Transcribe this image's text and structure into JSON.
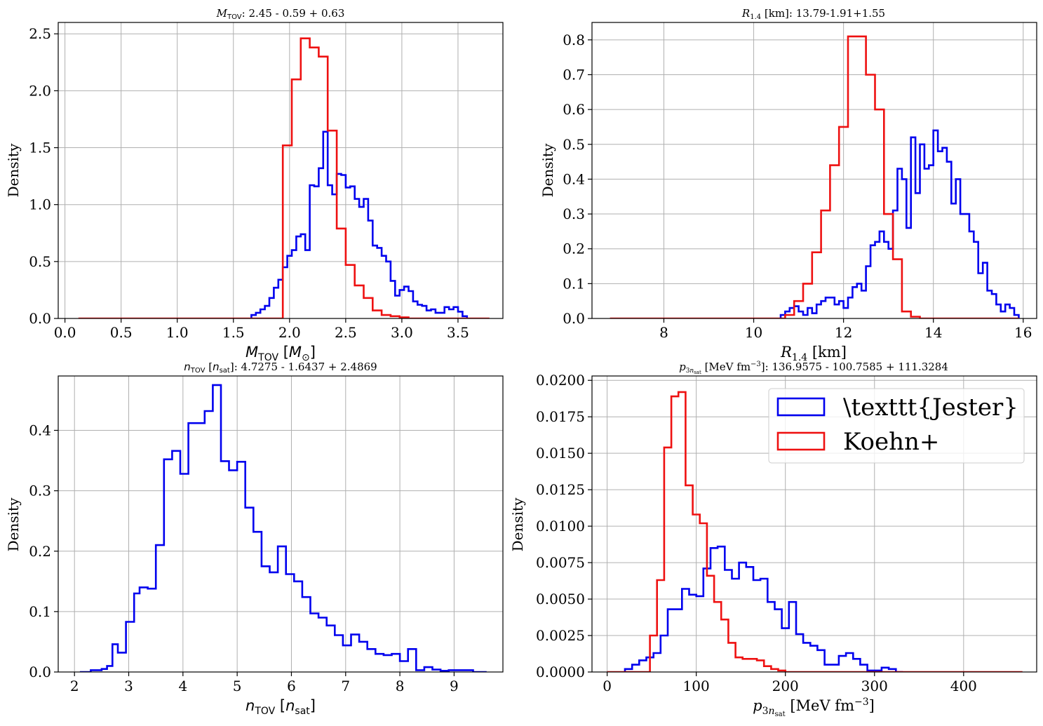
{
  "colors": {
    "jester": "#0000ee",
    "koehn": "#ee1111",
    "grid": "#b0b0b0"
  },
  "chart_data": [
    {
      "id": "mtov",
      "type": "step-histogram",
      "title": "M_TOV: 2.45 - 0.59 + 0.63",
      "xlabel": "M_TOV [M_⊙]",
      "ylabel": "Density",
      "xlim": [
        -0.06,
        3.9
      ],
      "ylim": [
        0,
        2.6
      ],
      "xticks": [
        0.0,
        0.5,
        1.0,
        1.5,
        2.0,
        2.5,
        3.0,
        3.5
      ],
      "xtick_labels": [
        "0.0",
        "0.5",
        "1.0",
        "1.5",
        "2.0",
        "2.5",
        "3.0",
        "3.5"
      ],
      "yticks": [
        0.0,
        0.5,
        1.0,
        1.5,
        2.0,
        2.5
      ],
      "ytick_labels": [
        "0.0",
        "0.5",
        "1.0",
        "1.5",
        "2.0",
        "2.5"
      ],
      "grid": true,
      "series": [
        {
          "name": "\\texttt{Jester}",
          "key": "jester",
          "edges": [
            1.66,
            1.7,
            1.74,
            1.78,
            1.82,
            1.86,
            1.9,
            1.94,
            1.98,
            2.02,
            2.06,
            2.1,
            2.14,
            2.18,
            2.22,
            2.26,
            2.3,
            2.34,
            2.38,
            2.42,
            2.46,
            2.5,
            2.54,
            2.58,
            2.62,
            2.66,
            2.7,
            2.74,
            2.78,
            2.82,
            2.86,
            2.9,
            2.94,
            2.98,
            3.02,
            3.06,
            3.1,
            3.14,
            3.18,
            3.22,
            3.26,
            3.3,
            3.34,
            3.38,
            3.42,
            3.46,
            3.5,
            3.54,
            3.58
          ],
          "values": [
            0.03,
            0.05,
            0.08,
            0.11,
            0.18,
            0.27,
            0.34,
            0.45,
            0.55,
            0.6,
            0.72,
            0.74,
            0.6,
            1.17,
            1.16,
            1.32,
            1.64,
            1.17,
            1.09,
            1.27,
            1.26,
            1.15,
            1.16,
            1.05,
            0.98,
            1.05,
            0.86,
            0.64,
            0.62,
            0.55,
            0.5,
            0.33,
            0.2,
            0.25,
            0.28,
            0.24,
            0.15,
            0.12,
            0.11,
            0.07,
            0.08,
            0.05,
            0.05,
            0.1,
            0.08,
            0.1,
            0.06,
            0.02
          ]
        },
        {
          "name": "Koehn+",
          "key": "koehn",
          "edges": [
            0.12,
            1.94,
            2.02,
            2.1,
            2.18,
            2.26,
            2.34,
            2.42,
            2.5,
            2.58,
            2.66,
            2.74,
            2.82,
            2.9,
            2.98,
            3.06,
            3.78
          ],
          "values": [
            0.0,
            1.52,
            2.1,
            2.46,
            2.38,
            2.3,
            1.65,
            0.79,
            0.47,
            0.29,
            0.18,
            0.07,
            0.03,
            0.02,
            0.01,
            0.0
          ]
        }
      ]
    },
    {
      "id": "r14",
      "type": "step-histogram",
      "title": "R_1.4 [km]: 13.79-1.91+1.55",
      "xlabel": "R_1.4 [km]",
      "ylabel": "Density",
      "xlim": [
        6.4,
        16.3
      ],
      "ylim": [
        0,
        0.85
      ],
      "xticks": [
        8,
        10,
        12,
        14,
        16
      ],
      "xtick_labels": [
        "8",
        "10",
        "12",
        "14",
        "16"
      ],
      "yticks": [
        0.0,
        0.1,
        0.2,
        0.3,
        0.4,
        0.5,
        0.6,
        0.7,
        0.8
      ],
      "ytick_labels": [
        "0.0",
        "0.1",
        "0.2",
        "0.3",
        "0.4",
        "0.5",
        "0.6",
        "0.7",
        "0.8"
      ],
      "grid": true,
      "series": [
        {
          "name": "\\texttt{Jester}",
          "key": "jester",
          "edges": [
            10.6,
            10.7,
            10.8,
            10.9,
            11.0,
            11.1,
            11.2,
            11.3,
            11.4,
            11.5,
            11.6,
            11.7,
            11.8,
            11.9,
            12.0,
            12.1,
            12.2,
            12.3,
            12.4,
            12.5,
            12.6,
            12.7,
            12.8,
            12.9,
            13.0,
            13.1,
            13.2,
            13.3,
            13.4,
            13.5,
            13.6,
            13.7,
            13.8,
            13.9,
            14.0,
            14.1,
            14.2,
            14.3,
            14.4,
            14.5,
            14.6,
            14.7,
            14.8,
            14.9,
            15.0,
            15.1,
            15.2,
            15.3,
            15.4,
            15.5,
            15.6,
            15.7,
            15.8,
            15.9
          ],
          "values": [
            0.01,
            0.02,
            0.03,
            0.035,
            0.02,
            0.01,
            0.03,
            0.015,
            0.04,
            0.05,
            0.06,
            0.06,
            0.04,
            0.05,
            0.03,
            0.06,
            0.09,
            0.1,
            0.08,
            0.15,
            0.21,
            0.22,
            0.25,
            0.22,
            0.2,
            0.31,
            0.43,
            0.4,
            0.26,
            0.52,
            0.36,
            0.5,
            0.43,
            0.44,
            0.54,
            0.48,
            0.49,
            0.45,
            0.33,
            0.4,
            0.3,
            0.3,
            0.25,
            0.22,
            0.13,
            0.16,
            0.08,
            0.07,
            0.04,
            0.02,
            0.04,
            0.03,
            0.01
          ]
        },
        {
          "name": "Koehn+",
          "key": "koehn",
          "edges": [
            6.8,
            10.7,
            10.9,
            11.1,
            11.3,
            11.5,
            11.7,
            11.9,
            12.1,
            12.3,
            12.5,
            12.7,
            12.9,
            13.1,
            13.3,
            13.5,
            13.7,
            15.9
          ],
          "values": [
            0.0,
            0.01,
            0.05,
            0.1,
            0.19,
            0.31,
            0.44,
            0.55,
            0.81,
            0.81,
            0.7,
            0.6,
            0.3,
            0.17,
            0.02,
            0.005,
            0.0
          ]
        }
      ]
    },
    {
      "id": "ntov",
      "type": "step-histogram",
      "title": "n_TOV [n_sat]: 4.7275 - 1.6437 + 2.4869",
      "xlabel": "n_TOV [n_sat]",
      "ylabel": "Density",
      "xlim": [
        1.7,
        9.9
      ],
      "ylim": [
        0,
        0.49
      ],
      "xticks": [
        2,
        3,
        4,
        5,
        6,
        7,
        8,
        9
      ],
      "xtick_labels": [
        "2",
        "3",
        "4",
        "5",
        "6",
        "7",
        "8",
        "9"
      ],
      "yticks": [
        0.0,
        0.1,
        0.2,
        0.3,
        0.4
      ],
      "ytick_labels": [
        "0.0",
        "0.1",
        "0.2",
        "0.3",
        "0.4"
      ],
      "grid": true,
      "series": [
        {
          "name": "\\texttt{Jester}",
          "key": "jester",
          "edges": [
            2.1,
            2.3,
            2.5,
            2.6,
            2.7,
            2.8,
            2.95,
            3.1,
            3.2,
            3.35,
            3.5,
            3.65,
            3.8,
            3.95,
            4.1,
            4.25,
            4.4,
            4.55,
            4.7,
            4.85,
            5.0,
            5.15,
            5.3,
            5.45,
            5.6,
            5.75,
            5.9,
            6.05,
            6.2,
            6.35,
            6.5,
            6.65,
            6.8,
            6.95,
            7.1,
            7.25,
            7.4,
            7.55,
            7.7,
            7.85,
            8.0,
            8.15,
            8.3,
            8.45,
            8.6,
            8.75,
            8.9,
            9.1,
            9.35,
            9.6
          ],
          "values": [
            0.0,
            0.003,
            0.005,
            0.01,
            0.046,
            0.032,
            0.083,
            0.13,
            0.14,
            0.138,
            0.21,
            0.352,
            0.366,
            0.328,
            0.412,
            0.412,
            0.432,
            0.475,
            0.349,
            0.334,
            0.348,
            0.272,
            0.232,
            0.175,
            0.165,
            0.208,
            0.162,
            0.15,
            0.124,
            0.097,
            0.09,
            0.077,
            0.061,
            0.044,
            0.062,
            0.05,
            0.038,
            0.03,
            0.028,
            0.03,
            0.018,
            0.038,
            0.003,
            0.008,
            0.004,
            0.002,
            0.003,
            0.003,
            0.0
          ]
        }
      ]
    },
    {
      "id": "p3nsat",
      "type": "step-histogram",
      "title": "p_3n_sat [MeV fm^-3]: 136.9575 - 100.7585 + 111.3284",
      "xlabel": "p_3n_sat [MeV fm^-3]",
      "ylabel": "Density",
      "xlim": [
        -17,
        482
      ],
      "ylim": [
        0,
        0.0203
      ],
      "xticks": [
        0,
        100,
        200,
        300,
        400
      ],
      "xtick_labels": [
        "0",
        "100",
        "200",
        "300",
        "400"
      ],
      "yticks": [
        0.0,
        0.0025,
        0.005,
        0.0075,
        0.01,
        0.0125,
        0.015,
        0.0175,
        0.02
      ],
      "ytick_labels": [
        "0.0000",
        "0.0025",
        "0.0050",
        "0.0075",
        "0.0100",
        "0.0125",
        "0.0150",
        "0.0175",
        "0.0200"
      ],
      "grid": true,
      "legend": {
        "placement": "upper right",
        "entries": [
          "\\texttt{Jester}",
          "Koehn+"
        ]
      },
      "series": [
        {
          "name": "\\texttt{Jester}",
          "key": "jester",
          "edges": [
            20,
            28,
            36,
            44,
            52,
            60,
            68,
            76,
            84,
            92,
            100,
            108,
            116,
            124,
            132,
            140,
            148,
            156,
            164,
            172,
            180,
            188,
            196,
            204,
            212,
            220,
            228,
            236,
            244,
            252,
            260,
            268,
            276,
            284,
            292,
            300,
            308,
            316,
            324,
            332
          ],
          "values": [
            0.0002,
            0.0005,
            0.0008,
            0.001,
            0.0013,
            0.0025,
            0.0043,
            0.0043,
            0.0057,
            0.0053,
            0.0052,
            0.0071,
            0.0085,
            0.0086,
            0.007,
            0.0064,
            0.0075,
            0.0072,
            0.0063,
            0.0064,
            0.0048,
            0.0043,
            0.003,
            0.0048,
            0.0026,
            0.002,
            0.0018,
            0.0015,
            0.0005,
            0.0005,
            0.0011,
            0.0013,
            0.0009,
            0.0005,
            0.0001,
            0.0001,
            0.0003,
            0.0002,
            0.0
          ]
        },
        {
          "name": "Koehn+",
          "key": "koehn",
          "edges": [
            0,
            48,
            56,
            64,
            72,
            80,
            88,
            96,
            104,
            112,
            120,
            128,
            136,
            144,
            152,
            160,
            168,
            176,
            184,
            192,
            200,
            466
          ],
          "values": [
            0.0,
            0.0025,
            0.0063,
            0.0154,
            0.0189,
            0.0192,
            0.0128,
            0.0108,
            0.0102,
            0.0066,
            0.0048,
            0.0036,
            0.002,
            0.001,
            0.0009,
            0.0009,
            0.0008,
            0.0004,
            0.0002,
            0.0001,
            0.0
          ]
        }
      ]
    }
  ]
}
